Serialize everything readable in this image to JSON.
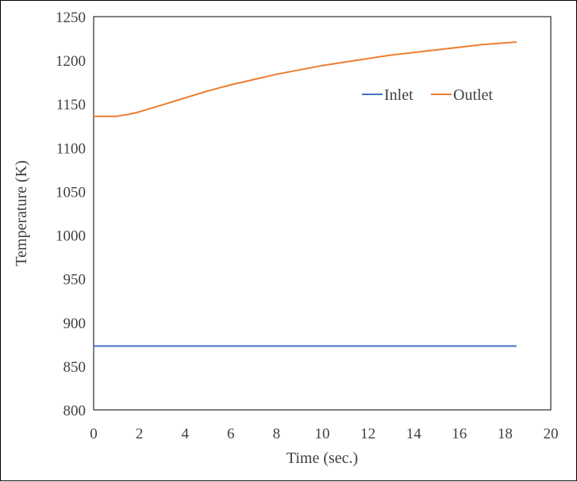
{
  "chart_data": {
    "type": "line",
    "title": "",
    "xlabel": "Time (sec.)",
    "ylabel": "Temperature (K)",
    "xlim": [
      0,
      20
    ],
    "ylim": [
      800,
      1250
    ],
    "xticks": [
      0,
      2,
      4,
      6,
      8,
      10,
      12,
      14,
      16,
      18,
      20
    ],
    "yticks": [
      800,
      850,
      900,
      950,
      1000,
      1050,
      1100,
      1150,
      1200,
      1250
    ],
    "grid": false,
    "legend_position": "top-right",
    "series": [
      {
        "name": "Inlet",
        "color": "#4472c4",
        "x": [
          0,
          18.5
        ],
        "y": [
          873,
          873
        ]
      },
      {
        "name": "Outlet",
        "color": "#ed7d31",
        "x": [
          0,
          0.5,
          1,
          1.5,
          2,
          3,
          4,
          5,
          6,
          7,
          8,
          9,
          10,
          11,
          12,
          13,
          14,
          15,
          16,
          17,
          18,
          18.5
        ],
        "y": [
          1136,
          1136,
          1136,
          1138,
          1141,
          1149,
          1157,
          1165,
          1172,
          1178,
          1184,
          1189,
          1194,
          1198,
          1202,
          1206,
          1209,
          1212,
          1215,
          1218,
          1220,
          1221
        ]
      }
    ]
  }
}
